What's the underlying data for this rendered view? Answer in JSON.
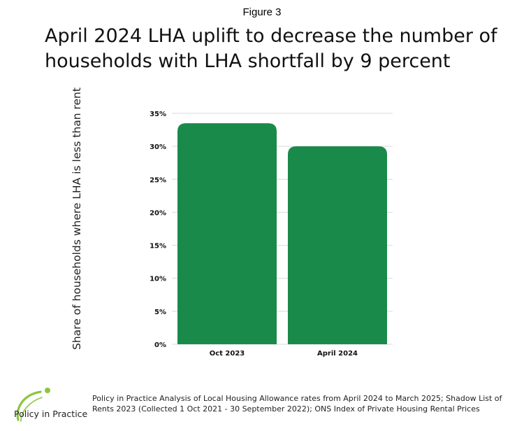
{
  "figure_label": "Figure 3",
  "source": "Policy in Practice Analysis of Local Housing Allowance rates from April 2024 to March 2025; Shadow List of Rents 2023 (Collected 1 Oct 2021 - 30 September 2022); ONS Index of Private Housing Rental Prices",
  "logo": {
    "text": "Policy in Practice",
    "colors": {
      "green": "#8cc63f",
      "dark": "#222222"
    }
  },
  "colors": {
    "bar": "#1a8a4a",
    "grid": "#d9d9d9"
  },
  "chart_data": {
    "type": "bar",
    "title": "April 2024 LHA uplift to decrease the number of households with LHA shortfall by 9 percent",
    "xlabel": "",
    "ylabel": "Share of households where LHA is less than rent",
    "categories": [
      "Oct 2023",
      "April 2024"
    ],
    "values": [
      33.5,
      30.0
    ],
    "ylim": [
      0,
      35
    ],
    "yticks": [
      0,
      5,
      10,
      15,
      20,
      25,
      30,
      35
    ],
    "ytick_labels": [
      "0%",
      "5%",
      "10%",
      "15%",
      "20%",
      "25%",
      "30%",
      "35%"
    ],
    "grid": true,
    "legend": "none"
  }
}
